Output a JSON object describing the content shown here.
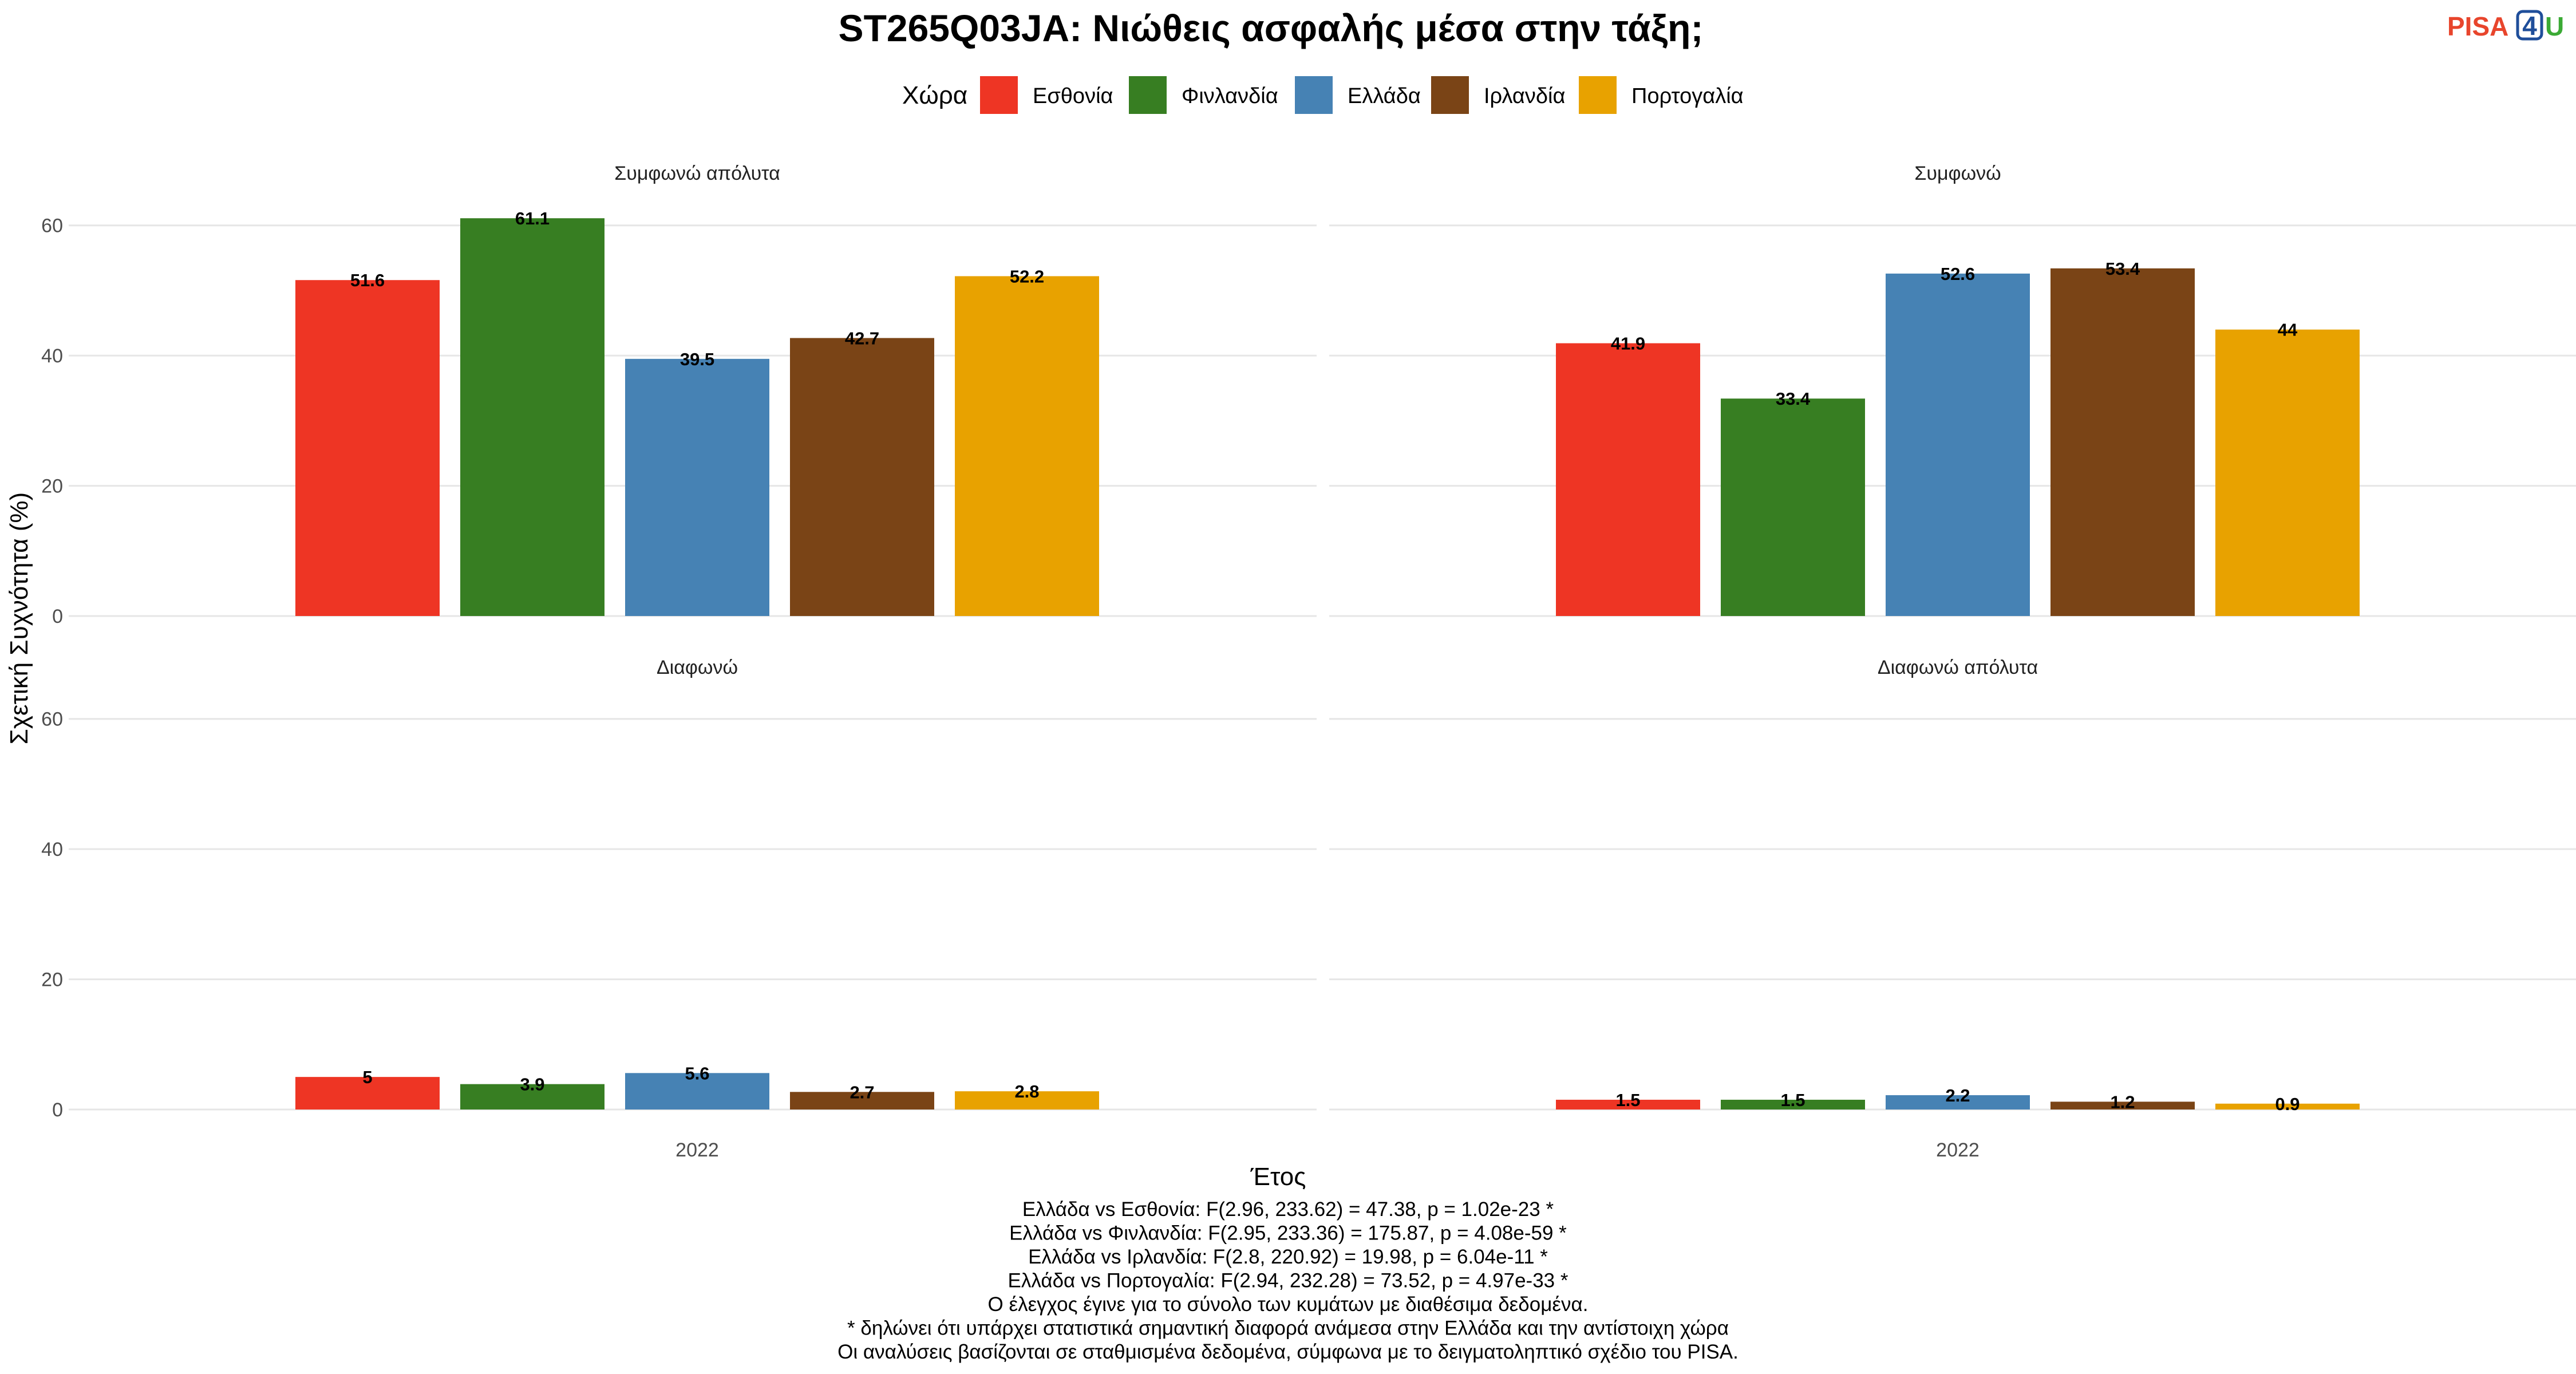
{
  "title": "ST265Q03JA: Νιώθεις ασφαλής μέσα στην τάξη;",
  "logo": {
    "part1": "PISA",
    "part2": "4",
    "part3": "U",
    "color1": "#E8452C",
    "color2": "#1F4E9A",
    "color3": "#3BAA35"
  },
  "legend": {
    "title": "Χώρα",
    "items": [
      {
        "label": "Εσθονία",
        "color": "#EE3524"
      },
      {
        "label": "Φινλανδία",
        "color": "#377E22"
      },
      {
        "label": "Ελλάδα",
        "color": "#4682B4"
      },
      {
        "label": "Ιρλανδία",
        "color": "#7A4416"
      },
      {
        "label": "Πορτογαλία",
        "color": "#E8A200"
      }
    ]
  },
  "axes": {
    "ylabel": "Σχετική Συχνότητα (%)",
    "xlabel": "Έτος",
    "x_tick": "2022"
  },
  "chart_data": {
    "type": "bar",
    "categories": [
      "Εσθονία",
      "Φινλανδία",
      "Ελλάδα",
      "Ιρλανδία",
      "Πορτογαλία"
    ],
    "ylim": [
      0,
      70
    ],
    "yticks": [
      0,
      20,
      40,
      60
    ],
    "grid": true,
    "legend_position": "top",
    "panels": [
      {
        "facet": "Συμφωνώ απόλυτα",
        "x": "2022",
        "values": [
          51.6,
          61.1,
          39.5,
          42.7,
          52.2
        ]
      },
      {
        "facet": "Συμφωνώ",
        "x": "2022",
        "values": [
          41.9,
          33.4,
          52.6,
          53.4,
          44
        ]
      },
      {
        "facet": "Διαφωνώ",
        "x": "2022",
        "values": [
          5,
          3.9,
          5.6,
          2.7,
          2.8
        ]
      },
      {
        "facet": "Διαφωνώ απόλυτα",
        "x": "2022",
        "values": [
          1.5,
          1.5,
          2.2,
          1.2,
          0.9
        ]
      }
    ]
  },
  "footnotes": [
    "Ελλάδα vs Εσθονία: F(2.96, 233.62) = 47.38, p = 1.02e-23 *",
    "Ελλάδα vs Φινλανδία: F(2.95, 233.36) = 175.87, p = 4.08e-59 *",
    "Ελλάδα vs Ιρλανδία: F(2.8, 220.92) = 19.98, p = 6.04e-11 *",
    "Ελλάδα vs Πορτογαλία: F(2.94, 232.28) = 73.52, p = 4.97e-33 *",
    "Ο έλεγχος έγινε για το σύνολο των κυμάτων με διαθέσιμα δεδομένα.",
    "* δηλώνει ότι υπάρχει στατιστικά σημαντική διαφορά ανάμεσα στην Ελλάδα και την αντίστοιχη χώρα",
    "Οι αναλύσεις βασίζονται σε σταθμισμένα δεδομένα, σύμφωνα με το δειγματοληπτικό σχέδιο του PISA."
  ]
}
